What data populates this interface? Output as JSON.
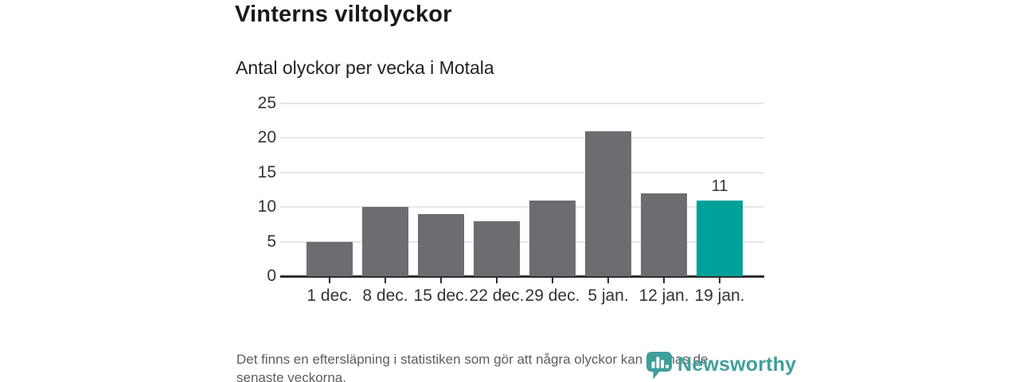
{
  "header": {
    "title": "Vinterns viltolyckor",
    "subtitle": "Antal olyckor per vecka i Motala"
  },
  "chart_data": {
    "type": "bar",
    "title": "Vinterns viltolyckor",
    "subtitle": "Antal olyckor per vecka i Motala",
    "categories": [
      "1 dec.",
      "8 dec.",
      "15 dec.",
      "22 dec.",
      "29 dec.",
      "5 jan.",
      "12 jan.",
      "19 jan."
    ],
    "values": [
      5,
      10,
      9,
      8,
      11,
      21,
      12,
      11
    ],
    "xlabel": "",
    "ylabel": "",
    "ylim": [
      0,
      25
    ],
    "yticks": [
      0,
      5,
      10,
      15,
      20,
      25
    ],
    "grid": true,
    "legend": "none",
    "highlight_index": 7,
    "highlight_label": "11",
    "bar_color": "#6c6c71",
    "highlight_color": "#00a19a",
    "axis_color": "#2e2e2e",
    "gridline_color": "#e6e6e6"
  },
  "footer": {
    "note_line1": "Det finns en eftersläpning i statistiken som gör att några olyckor kan saknas de",
    "note_line2": "senaste veckorna."
  },
  "logo": {
    "text": "Newsworthy",
    "color": "#3f9f9b",
    "icon": "newsworthy-bubble-chart-icon"
  }
}
